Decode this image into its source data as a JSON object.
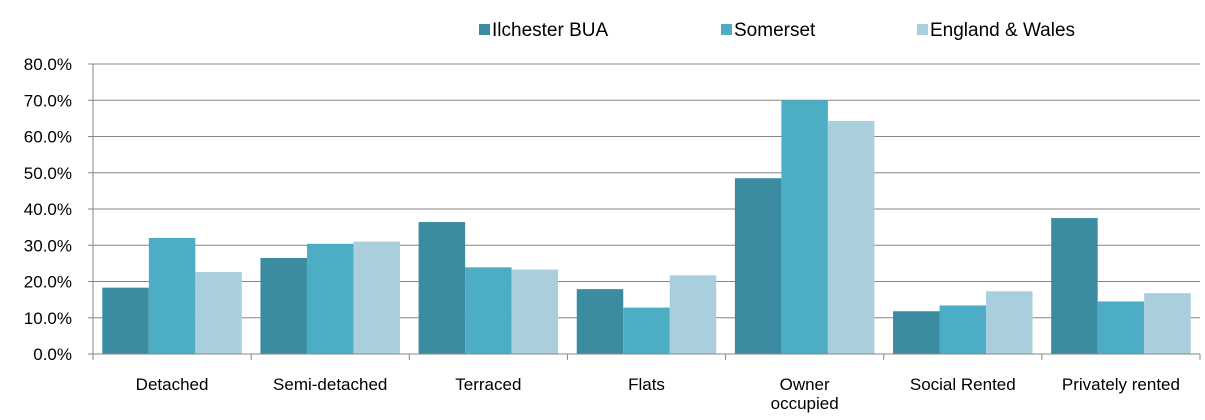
{
  "chart_data": {
    "type": "bar",
    "title": "",
    "xlabel": "",
    "ylabel": "",
    "categories": [
      "Detached",
      "Semi-detached",
      "Terraced",
      "Flats",
      "Owner occupied",
      "Social Rented",
      "Privately rented"
    ],
    "category_lines": [
      [
        "Detached"
      ],
      [
        "Semi-detached"
      ],
      [
        "Terraced"
      ],
      [
        "Flats"
      ],
      [
        "Owner",
        "occupied"
      ],
      [
        "Social Rented"
      ],
      [
        "Privately rented"
      ]
    ],
    "series": [
      {
        "name": "Ilchester BUA",
        "color": "#3b8ca1",
        "values": [
          18.3,
          26.5,
          36.4,
          17.9,
          48.5,
          11.8,
          37.5
        ]
      },
      {
        "name": "Somerset",
        "color": "#4cadc5",
        "values": [
          32.0,
          30.4,
          23.9,
          12.8,
          70.0,
          13.4,
          14.5
        ]
      },
      {
        "name": "England & Wales",
        "color": "#a9cfdd",
        "values": [
          22.6,
          31.0,
          23.3,
          21.7,
          64.3,
          17.3,
          16.8
        ]
      }
    ],
    "ylim": [
      0,
      80
    ],
    "yticks": [
      0,
      10,
      20,
      30,
      40,
      50,
      60,
      70,
      80
    ],
    "ytick_labels": [
      "0.0%",
      "10.0%",
      "20.0%",
      "30.0%",
      "40.0%",
      "50.0%",
      "60.0%",
      "70.0%",
      "80.0%"
    ],
    "grid": true,
    "legend_position": "top-right"
  }
}
